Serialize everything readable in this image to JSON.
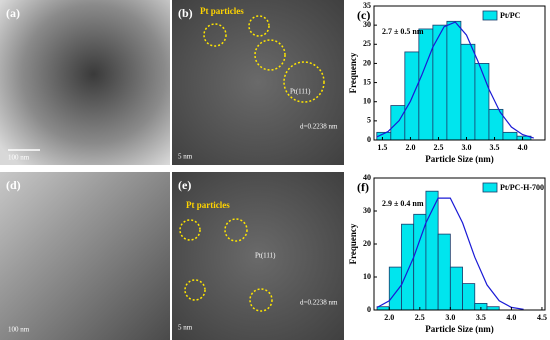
{
  "figure": {
    "panels": [
      {
        "label": "(a)",
        "scale": "100 nm"
      },
      {
        "label": "(b)",
        "annotations": [
          "Pt particles",
          "Pt(111)",
          "d=0.2238 nm",
          "5 nm"
        ]
      },
      {
        "label": "(d)",
        "scale": "100 nm"
      },
      {
        "label": "(e)",
        "annotations": [
          "Pt particles",
          "Pt(111)",
          "d=0.2238 nm",
          "5 nm"
        ]
      }
    ]
  },
  "chart_data": [
    {
      "type": "histogram",
      "panel_label": "(c)",
      "x_label": "Particle Size (nm)",
      "y_label": "Frequency",
      "annotation": "2.7 ± 0.5 nm",
      "legend_position": "upper right",
      "series": [
        {
          "name": "Pt/PC",
          "color": "#00e5ee",
          "bins": [
            1.4,
            1.65,
            1.9,
            2.15,
            2.4,
            2.65,
            2.9,
            3.15,
            3.4,
            3.65,
            3.9,
            4.15
          ],
          "values": [
            2,
            9,
            23,
            29,
            30,
            31,
            25,
            20,
            8,
            2,
            1
          ]
        }
      ],
      "fit": {
        "color": "#1a1ad6",
        "x": [
          1.4,
          1.6,
          1.8,
          2.0,
          2.2,
          2.4,
          2.6,
          2.8,
          3.0,
          3.2,
          3.4,
          3.6,
          3.8,
          4.0,
          4.2
        ],
        "y": [
          0.8,
          2.2,
          5.1,
          10.1,
          16.9,
          24.3,
          29.6,
          30.8,
          27.4,
          20.7,
          13.3,
          7.3,
          3.4,
          1.4,
          0.5
        ]
      },
      "xlim": [
        1.35,
        4.4
      ],
      "xticks": [
        1.5,
        {
          "value": 2,
          "label": "2.0"
        },
        2.5,
        {
          "value": 3,
          "label": "3.0"
        },
        3.5,
        {
          "value": 4,
          "label": "4.0"
        }
      ],
      "ylim": [
        0,
        35
      ],
      "yticks": [
        0,
        5,
        10,
        15,
        20,
        25,
        30,
        35
      ]
    },
    {
      "type": "histogram",
      "panel_label": "(f)",
      "x_label": "Particle Size (nm)",
      "y_label": "Frequency",
      "annotation": "2.9 ± 0.4 nm",
      "legend_position": "upper right",
      "series": [
        {
          "name": "Pt/PC-H-700",
          "color": "#00e5ee",
          "bins": [
            1.8,
            2.0,
            2.2,
            2.4,
            2.6,
            2.8,
            3.0,
            3.2,
            3.4,
            3.6,
            3.8
          ],
          "values": [
            1,
            13,
            26,
            29,
            36,
            23,
            13,
            8,
            2,
            1
          ]
        }
      ],
      "fit": {
        "color": "#1a1ad6",
        "x": [
          1.8,
          2.0,
          2.2,
          2.4,
          2.6,
          2.8,
          3.0,
          3.2,
          3.4,
          3.6,
          3.8,
          4.0,
          4.2
        ],
        "y": [
          0.8,
          2.8,
          7.6,
          16.0,
          26.4,
          33.9,
          33.9,
          26.4,
          16.0,
          7.6,
          2.8,
          0.8,
          0.2
        ]
      },
      "xlim": [
        1.75,
        4.55
      ],
      "xticks": [
        {
          "value": 2,
          "label": "2.0"
        },
        2.5,
        {
          "value": 3,
          "label": "3.0"
        },
        3.5,
        {
          "value": 4,
          "label": "4.0"
        },
        4.5
      ],
      "ylim": [
        0,
        40
      ],
      "yticks": [
        0,
        10,
        20,
        30,
        40
      ]
    }
  ]
}
